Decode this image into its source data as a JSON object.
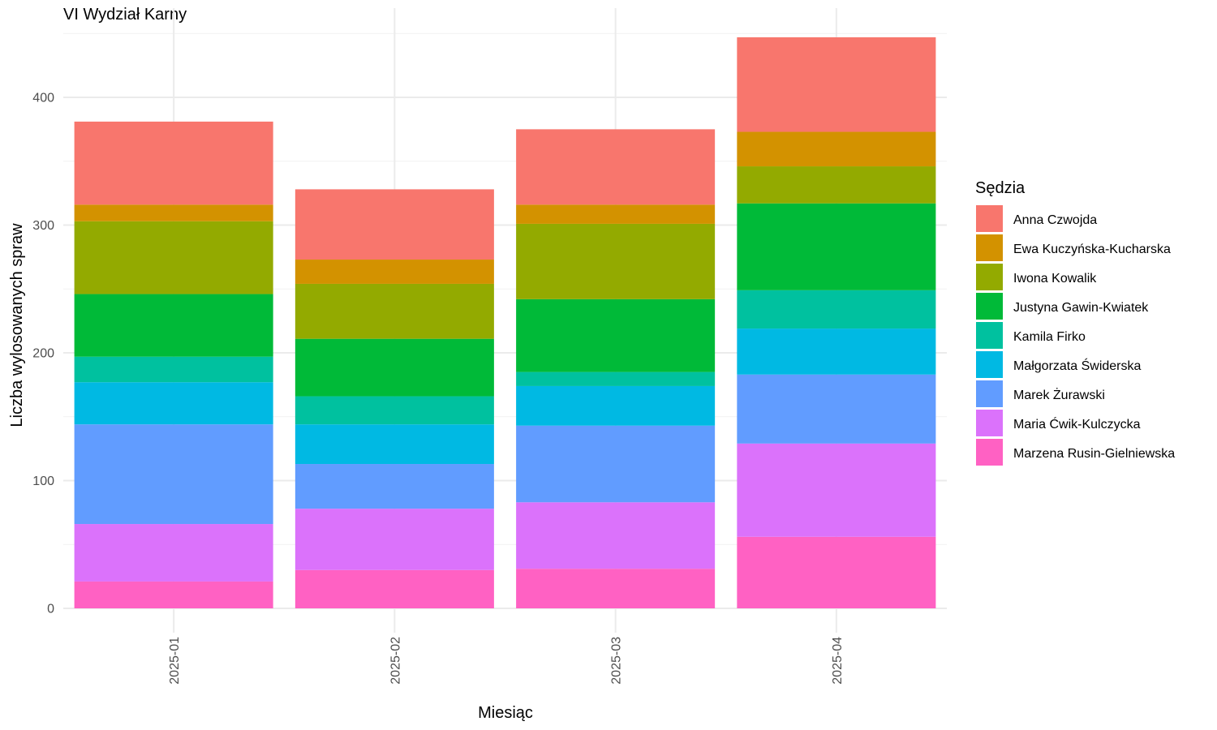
{
  "chart_data": {
    "type": "bar",
    "stacked": true,
    "title": "VI Wydział Karny",
    "xlabel": "Miesiąc",
    "ylabel": "Liczba wylosowanych spraw",
    "ylim": [
      0,
      465
    ],
    "yticks": [
      0,
      100,
      200,
      300,
      400
    ],
    "grid": true,
    "legend_position": "right",
    "legend_title": "Sędzia",
    "categories": [
      "2025-01",
      "2025-02",
      "2025-03",
      "2025-04"
    ],
    "series": [
      {
        "name": "Anna Czwojda",
        "color": "#F8766D",
        "values": [
          65,
          55,
          59,
          74
        ]
      },
      {
        "name": "Ewa Kuczyńska-Kucharska",
        "color": "#D39200",
        "values": [
          13,
          19,
          15,
          27
        ]
      },
      {
        "name": "Iwona Kowalik",
        "color": "#93AA00",
        "values": [
          57,
          43,
          59,
          29
        ]
      },
      {
        "name": "Justyna Gawin-Kwiatek",
        "color": "#00BA38",
        "values": [
          49,
          45,
          57,
          68
        ]
      },
      {
        "name": "Kamila Firko",
        "color": "#00C19F",
        "values": [
          20,
          22,
          11,
          30
        ]
      },
      {
        "name": "Małgorzata Świderska",
        "color": "#00B9E3",
        "values": [
          33,
          31,
          31,
          36
        ]
      },
      {
        "name": "Marek Żurawski",
        "color": "#619CFF",
        "values": [
          78,
          35,
          60,
          54
        ]
      },
      {
        "name": "Maria Ćwik-Kulczycka",
        "color": "#DB72FB",
        "values": [
          45,
          48,
          52,
          73
        ]
      },
      {
        "name": "Marzena Rusin-Gielniewska",
        "color": "#FF61C3",
        "values": [
          21,
          30,
          31,
          56
        ]
      }
    ]
  }
}
